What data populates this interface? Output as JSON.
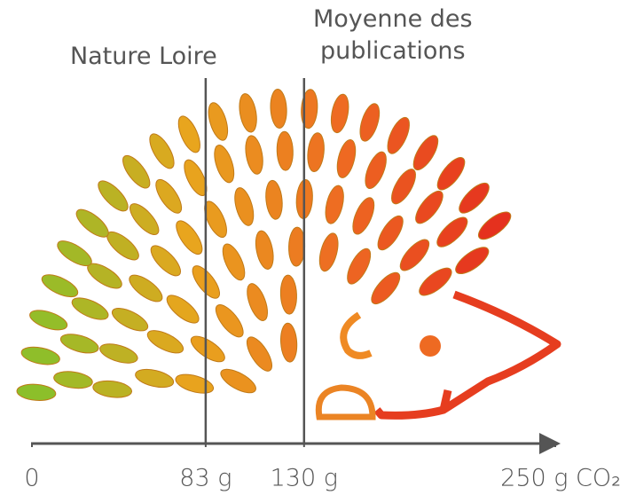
{
  "chart_data": {
    "type": "scale",
    "xlim": [
      0,
      250
    ],
    "xticks": [
      0,
      {
        "value": 83,
        "label": "83 g"
      },
      {
        "value": 130,
        "label": "130 g"
      },
      {
        "value": 250,
        "label": "250 g CO₂"
      }
    ],
    "series": [
      {
        "name": "Nature Loire",
        "values": [
          83
        ]
      },
      {
        "name": "Moyenne des publications",
        "values": [
          130
        ]
      }
    ]
  }
}
